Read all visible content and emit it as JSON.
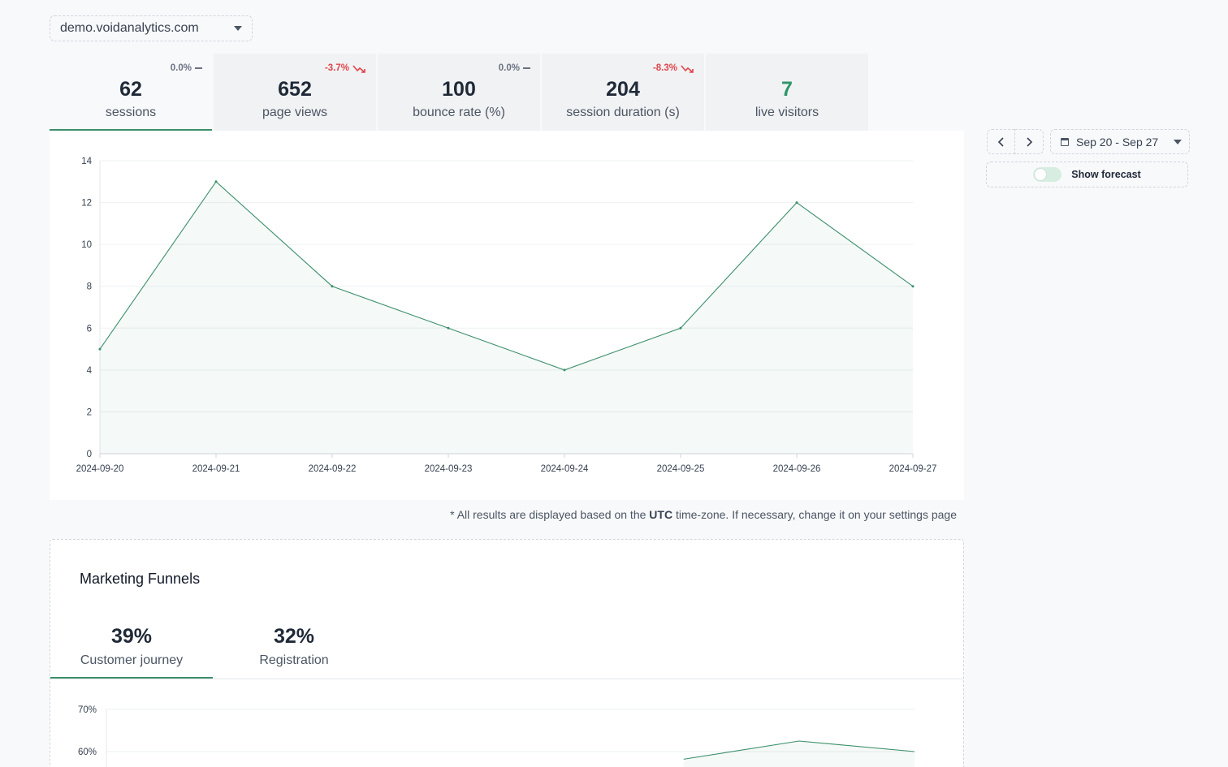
{
  "site_selector": {
    "value": "demo.voidanalytics.com",
    "icon": "caret-down-icon"
  },
  "kpis": [
    {
      "id": "sessions",
      "value": "62",
      "label": "sessions",
      "delta": "0.0%",
      "trend": "flat"
    },
    {
      "id": "page-views",
      "value": "652",
      "label": "page views",
      "delta": "-3.7%",
      "trend": "down"
    },
    {
      "id": "bounce-rate",
      "value": "100",
      "label": "bounce rate (%)",
      "delta": "0.0%",
      "trend": "flat"
    },
    {
      "id": "session-duration",
      "value": "204",
      "label": "session duration (s)",
      "delta": "-8.3%",
      "trend": "down"
    },
    {
      "id": "live-visitors",
      "value": "7",
      "label": "live visitors",
      "delta": "",
      "trend": ""
    }
  ],
  "date_nav": {
    "prev_icon": "chevron-left-icon",
    "next_icon": "chevron-right-icon",
    "range_label": "Sep 20 - Sep 27",
    "calendar_icon": "calendar-icon"
  },
  "forecast": {
    "label": "Show forecast",
    "enabled": false
  },
  "colors": {
    "accent": "#3b8f6a",
    "negative": "#e0454a",
    "live": "#2d9667"
  },
  "chart_data": [
    {
      "type": "area",
      "x": [
        "2024-09-20",
        "2024-09-21",
        "2024-09-22",
        "2024-09-23",
        "2024-09-24",
        "2024-09-25",
        "2024-09-26",
        "2024-09-27"
      ],
      "series": [
        {
          "values": [
            5,
            13,
            8,
            6,
            4,
            6,
            12,
            8
          ]
        }
      ],
      "yticks": [
        "0",
        "2",
        "4",
        "6",
        "8",
        "10",
        "12",
        "14"
      ],
      "ylim": [
        0,
        14
      ],
      "grid": true
    },
    {
      "type": "area",
      "x": [
        "2024-09-20",
        "2024-09-21",
        "2024-09-22",
        "2024-09-23",
        "2024-09-24",
        "2024-09-25",
        "2024-09-26",
        "2024-09-27"
      ],
      "series": [
        {
          "values": [
            null,
            null,
            null,
            null,
            null,
            58.2,
            62.5,
            60.0
          ]
        }
      ],
      "yticks": [
        "70%",
        "60%"
      ],
      "ylim": [
        0,
        70
      ],
      "grid": true
    }
  ],
  "tz_note": {
    "prefix": "* All results are displayed based on the ",
    "zone": "UTC",
    "suffix": " time-zone. If necessary, change it on your settings page"
  },
  "funnels": {
    "title": "Marketing Funnels",
    "tabs": [
      {
        "pct": "39%",
        "name": "Customer journey",
        "active": true
      },
      {
        "pct": "32%",
        "name": "Registration",
        "active": false
      }
    ]
  }
}
